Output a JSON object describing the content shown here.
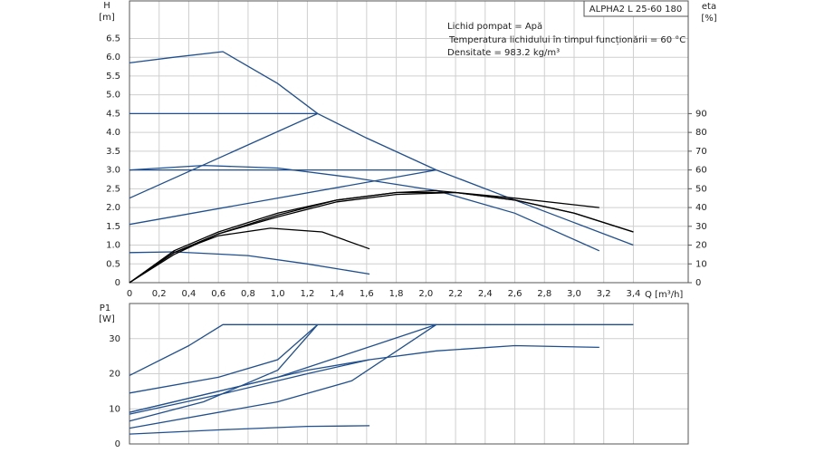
{
  "chart_data": [
    {
      "type": "line",
      "title": "ALPHA2 L 25-60 180",
      "annotations": [
        "Lichid pompat = Apă",
        "Temperatura lichidului în timpul funcționării = 60  °C",
        "Densitate = 983.2  kg/m³"
      ],
      "y_label": "H",
      "y_unit": "[m]",
      "y2_label": "eta",
      "y2_unit": "[%]",
      "x_label": "Q [m³/h]",
      "xlim": [
        0,
        3.77
      ],
      "ylim": [
        0,
        7.5
      ],
      "y2lim": [
        0,
        150
      ],
      "grid": true,
      "xticks": [
        0,
        {
          "value": 0.2,
          "label": "0,2"
        },
        {
          "value": 0.4,
          "label": "0,4"
        },
        {
          "value": 0.6,
          "label": "0,6"
        },
        {
          "value": 0.8,
          "label": "0,8"
        },
        {
          "value": 1,
          "label": "1,0"
        },
        {
          "value": 1.2,
          "label": "1,2"
        },
        {
          "value": 1.4,
          "label": "1,4"
        },
        {
          "value": 1.6,
          "label": "1,6"
        },
        {
          "value": 1.8,
          "label": "1,8"
        },
        {
          "value": 2,
          "label": "2,0"
        },
        {
          "value": 2.2,
          "label": "2,2"
        },
        {
          "value": 2.4,
          "label": "2,4"
        },
        {
          "value": 2.6,
          "label": "2,6"
        },
        {
          "value": 2.8,
          "label": "2,8"
        },
        {
          "value": 3,
          "label": "3,0"
        },
        {
          "value": 3.2,
          "label": "3,2"
        },
        {
          "value": 3.4,
          "label": "3,4"
        }
      ],
      "yticks": [
        0,
        0.5,
        {
          "value": 1,
          "label": "1.0"
        },
        1.5,
        {
          "value": 2,
          "label": "2.0"
        },
        2.5,
        {
          "value": 3,
          "label": "3.0"
        },
        3.5,
        {
          "value": 4,
          "label": "4.0"
        },
        4.5,
        {
          "value": 5,
          "label": "5.0"
        },
        5.5,
        {
          "value": 6,
          "label": "6.0"
        },
        6.5
      ],
      "y2ticks": [
        0,
        10,
        20,
        30,
        40,
        50,
        60,
        70,
        80,
        90
      ],
      "series": [
        {
          "color": "#1f4f8f",
          "x": [
            0,
            0.3,
            0.63,
            1.0,
            1.27,
            1.6,
            2.07,
            2.6,
            3.0,
            3.4
          ],
          "values": [
            5.85,
            6.0,
            6.15,
            5.3,
            4.5,
            3.85,
            3.0,
            2.2,
            1.6,
            1.0
          ]
        },
        {
          "color": "#1f4f8f",
          "x": [
            0,
            1.27
          ],
          "values": [
            4.5,
            4.5
          ]
        },
        {
          "color": "#1f4f8f",
          "x": [
            0,
            1.27
          ],
          "values": [
            2.25,
            4.5
          ]
        },
        {
          "color": "#1f4f8f",
          "x": [
            0,
            2.07
          ],
          "values": [
            3.0,
            3.0
          ]
        },
        {
          "color": "#1f4f8f",
          "x": [
            0,
            2.07
          ],
          "values": [
            1.55,
            3.0
          ]
        },
        {
          "color": "#1f4f8f",
          "x": [
            0,
            0.5,
            1.0,
            1.5,
            2.07,
            2.6,
            3.17
          ],
          "values": [
            3.0,
            3.12,
            3.05,
            2.8,
            2.45,
            1.85,
            0.85
          ]
        },
        {
          "color": "#1f4f8f",
          "x": [
            0,
            0.3,
            0.8,
            1.2,
            1.62
          ],
          "values": [
            0.8,
            0.82,
            0.72,
            0.5,
            0.23
          ]
        },
        {
          "color": "#000000",
          "axis": "y2",
          "x": [
            0,
            0.3,
            0.6,
            1.0,
            1.4,
            1.8,
            2.2,
            2.6,
            3.0,
            3.4
          ],
          "values": [
            0,
            17,
            27,
            37,
            44,
            48,
            48,
            44,
            37,
            27
          ]
        },
        {
          "color": "#000000",
          "axis": "y2",
          "x": [
            0,
            0.3,
            0.6,
            1.0,
            1.4,
            1.8,
            2.2,
            2.6,
            3.0,
            3.4
          ],
          "values": [
            0,
            15,
            26,
            35,
            43,
            47,
            48,
            44,
            37,
            27
          ]
        },
        {
          "color": "#000000",
          "axis": "y2",
          "x": [
            0,
            0.3,
            0.6,
            1.0,
            1.4,
            1.8,
            2.07,
            2.6,
            3.17
          ],
          "values": [
            0,
            16,
            26,
            36,
            44,
            48,
            49,
            45,
            40
          ]
        },
        {
          "color": "#000000",
          "axis": "y2",
          "x": [
            0,
            0.3,
            0.6,
            0.95,
            1.3,
            1.62
          ],
          "values": [
            0,
            16,
            25,
            29,
            27,
            18
          ]
        }
      ]
    },
    {
      "type": "line",
      "y_label": "P1",
      "y_unit": "[W]",
      "xlim": [
        0,
        3.77
      ],
      "ylim": [
        0,
        40
      ],
      "grid": true,
      "xticks": [
        0,
        0.2,
        0.4,
        0.6,
        0.8,
        1,
        1.2,
        1.4,
        1.6,
        1.8,
        2,
        2.2,
        2.4,
        2.6,
        2.8,
        3,
        3.2,
        3.4
      ],
      "yticks": [
        0,
        10,
        20,
        30
      ],
      "series": [
        {
          "color": "#1f4f8f",
          "x": [
            0,
            0.4,
            0.63,
            3.4
          ],
          "values": [
            19.5,
            28,
            34,
            34
          ]
        },
        {
          "color": "#1f4f8f",
          "x": [
            0,
            0.6,
            1.0,
            1.27
          ],
          "values": [
            14.5,
            19,
            24,
            34
          ]
        },
        {
          "color": "#1f4f8f",
          "x": [
            0,
            0.5,
            1.0,
            1.27
          ],
          "values": [
            6.5,
            12,
            21,
            34
          ]
        },
        {
          "color": "#1f4f8f",
          "x": [
            0,
            1.0,
            2.07
          ],
          "values": [
            9,
            19,
            34
          ]
        },
        {
          "color": "#1f4f8f",
          "x": [
            0,
            1.0,
            1.5,
            2.07
          ],
          "values": [
            4.5,
            12,
            18,
            34
          ]
        },
        {
          "color": "#1f4f8f",
          "x": [
            0,
            0.6,
            1.2,
            1.62
          ],
          "values": [
            8.5,
            14,
            20,
            24
          ]
        },
        {
          "color": "#1f4f8f",
          "x": [
            0,
            0.6,
            1.2,
            1.62,
            2.07,
            2.6,
            3.17
          ],
          "values": [
            9,
            15,
            21,
            24,
            26.5,
            28,
            27.5
          ]
        },
        {
          "color": "#1f4f8f",
          "x": [
            0,
            0.6,
            1.2,
            1.62
          ],
          "values": [
            2.8,
            4,
            5,
            5.2
          ]
        }
      ]
    }
  ]
}
